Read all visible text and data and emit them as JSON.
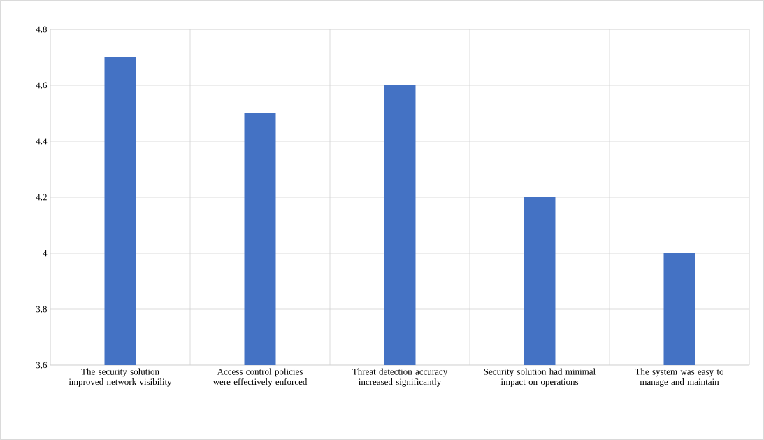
{
  "chart_data": {
    "type": "bar",
    "categories": [
      "The security solution improved network visibility",
      "Access control policies were effectively enforced",
      "Threat detection accuracy increased significantly",
      "Security solution had minimal impact on operations",
      "The system was easy to manage and maintain"
    ],
    "values": [
      4.7,
      4.5,
      4.6,
      4.2,
      4.0
    ],
    "color": "#4472c4",
    "ylim": [
      3.6,
      4.8
    ],
    "yticks": [
      3.6,
      3.8,
      4,
      4.2,
      4.4,
      4.6,
      4.8
    ],
    "grid": true
  }
}
